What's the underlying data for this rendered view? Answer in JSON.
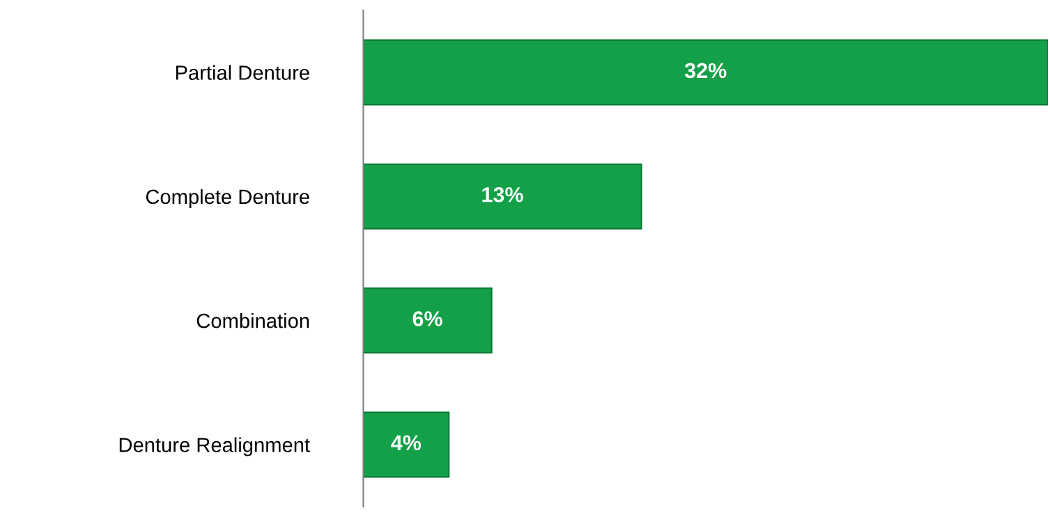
{
  "chart_data": {
    "type": "bar",
    "orientation": "horizontal",
    "categories": [
      "Partial Denture",
      "Complete Denture",
      "Combination",
      "Denture Realignment"
    ],
    "values": [
      32,
      13,
      6,
      4
    ],
    "value_labels": [
      "32%",
      "13%",
      "6%",
      "4%"
    ],
    "color": "#13a049",
    "tick_labels": "y",
    "grid": false,
    "legend": false
  }
}
